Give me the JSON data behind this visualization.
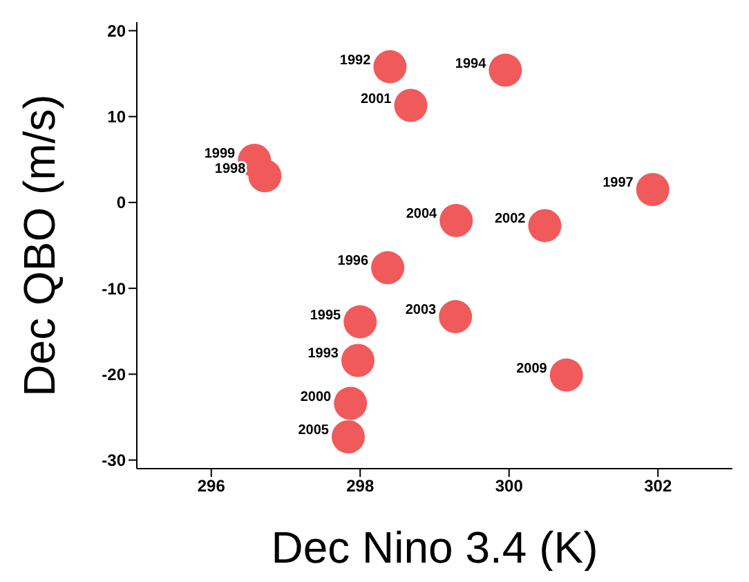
{
  "chart_data": {
    "type": "scatter",
    "xlabel": "Dec Nino 3.4 (K)",
    "ylabel": "Dec QBO (m/s)",
    "x": [
      298.4,
      299.95,
      298.68,
      296.58,
      296.72,
      301.93,
      299.29,
      300.48,
      298.37,
      298.0,
      299.28,
      297.97,
      300.77,
      297.87,
      297.84
    ],
    "series": [
      {
        "color": "#f05a5a",
        "values": [
          15.8,
          15.4,
          11.3,
          4.9,
          3.1,
          1.5,
          -2.1,
          -2.7,
          -7.6,
          -13.9,
          -13.3,
          -18.4,
          -20.1,
          -23.4,
          -27.3
        ]
      }
    ],
    "marker": "circle",
    "xlim": [
      295,
      303
    ],
    "xticks": [
      296,
      298,
      300,
      302
    ],
    "ylim": [
      -31,
      21
    ],
    "yticks": [
      -30,
      -20,
      -10,
      0,
      10,
      20
    ],
    "annotations": [
      {
        "text": "1992",
        "x": 298.4,
        "y": 15.8
      },
      {
        "text": "1994",
        "x": 299.95,
        "y": 15.4
      },
      {
        "text": "2001",
        "x": 298.68,
        "y": 11.3
      },
      {
        "text": "1999",
        "x": 296.58,
        "y": 4.9
      },
      {
        "text": "1998",
        "x": 296.72,
        "y": 3.1
      },
      {
        "text": "1997",
        "x": 301.93,
        "y": 1.5
      },
      {
        "text": "2004",
        "x": 299.29,
        "y": -2.1
      },
      {
        "text": "2002",
        "x": 300.48,
        "y": -2.7
      },
      {
        "text": "1996",
        "x": 298.37,
        "y": -7.6
      },
      {
        "text": "1995",
        "x": 298.0,
        "y": -13.9
      },
      {
        "text": "2003",
        "x": 299.28,
        "y": -13.3
      },
      {
        "text": "1993",
        "x": 297.97,
        "y": -18.4
      },
      {
        "text": "2009",
        "x": 300.77,
        "y": -20.1
      },
      {
        "text": "2000",
        "x": 297.87,
        "y": -23.4
      },
      {
        "text": "2005",
        "x": 297.84,
        "y": -27.3
      }
    ]
  }
}
